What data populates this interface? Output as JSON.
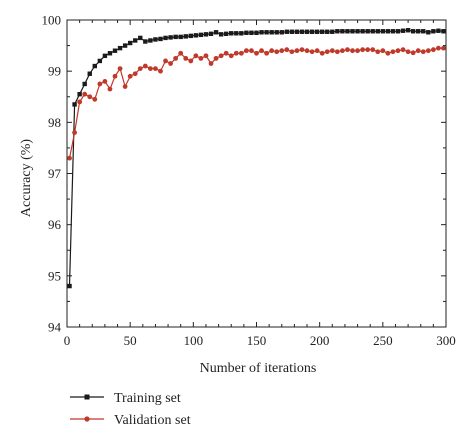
{
  "chart_data": {
    "type": "line",
    "title": "",
    "xlabel": "Number of iterations",
    "ylabel": "Accuracy (%)",
    "xlim": [
      0,
      300
    ],
    "ylim": [
      94,
      100
    ],
    "xticks": [
      0,
      50,
      100,
      150,
      200,
      250,
      300
    ],
    "yticks": [
      94,
      95,
      96,
      97,
      98,
      99,
      100
    ],
    "grid": false,
    "legend_position": "bottom-left, below plot",
    "x": [
      2,
      6,
      10,
      14,
      18,
      22,
      26,
      30,
      34,
      38,
      42,
      46,
      50,
      54,
      58,
      62,
      66,
      70,
      74,
      78,
      82,
      86,
      90,
      94,
      98,
      102,
      106,
      110,
      114,
      118,
      122,
      126,
      130,
      134,
      138,
      142,
      146,
      150,
      154,
      158,
      162,
      166,
      170,
      174,
      178,
      182,
      186,
      190,
      194,
      198,
      202,
      206,
      210,
      214,
      218,
      222,
      226,
      230,
      234,
      238,
      242,
      246,
      250,
      254,
      258,
      262,
      266,
      270,
      274,
      278,
      282,
      286,
      290,
      294,
      298
    ],
    "series": [
      {
        "name": "Training set",
        "color": "#1a1a1a",
        "marker": "square",
        "values": [
          94.8,
          98.35,
          98.55,
          98.75,
          98.95,
          99.1,
          99.2,
          99.3,
          99.35,
          99.4,
          99.45,
          99.5,
          99.55,
          99.6,
          99.65,
          99.58,
          99.6,
          99.62,
          99.63,
          99.65,
          99.66,
          99.67,
          99.67,
          99.68,
          99.69,
          99.7,
          99.71,
          99.72,
          99.73,
          99.76,
          99.72,
          99.73,
          99.74,
          99.74,
          99.74,
          99.75,
          99.75,
          99.75,
          99.76,
          99.76,
          99.76,
          99.76,
          99.76,
          99.77,
          99.77,
          99.77,
          99.77,
          99.77,
          99.77,
          99.77,
          99.77,
          99.77,
          99.77,
          99.78,
          99.78,
          99.78,
          99.78,
          99.78,
          99.78,
          99.78,
          99.78,
          99.78,
          99.78,
          99.78,
          99.78,
          99.78,
          99.79,
          99.8,
          99.78,
          99.78,
          99.78,
          99.76,
          99.78,
          99.79,
          99.78
        ]
      },
      {
        "name": "Validation set",
        "color": "#c0392b",
        "marker": "circle",
        "values": [
          97.3,
          97.8,
          98.4,
          98.55,
          98.5,
          98.45,
          98.75,
          98.8,
          98.65,
          98.9,
          99.05,
          98.7,
          98.9,
          98.95,
          99.05,
          99.1,
          99.05,
          99.05,
          99.0,
          99.2,
          99.15,
          99.25,
          99.35,
          99.25,
          99.2,
          99.3,
          99.25,
          99.3,
          99.15,
          99.25,
          99.3,
          99.35,
          99.3,
          99.35,
          99.35,
          99.4,
          99.4,
          99.35,
          99.4,
          99.35,
          99.4,
          99.38,
          99.4,
          99.42,
          99.38,
          99.4,
          99.42,
          99.4,
          99.38,
          99.4,
          99.35,
          99.38,
          99.4,
          99.38,
          99.4,
          99.42,
          99.4,
          99.4,
          99.42,
          99.42,
          99.42,
          99.38,
          99.4,
          99.35,
          99.38,
          99.4,
          99.42,
          99.38,
          99.36,
          99.4,
          99.38,
          99.4,
          99.42,
          99.45,
          99.45
        ]
      }
    ]
  }
}
